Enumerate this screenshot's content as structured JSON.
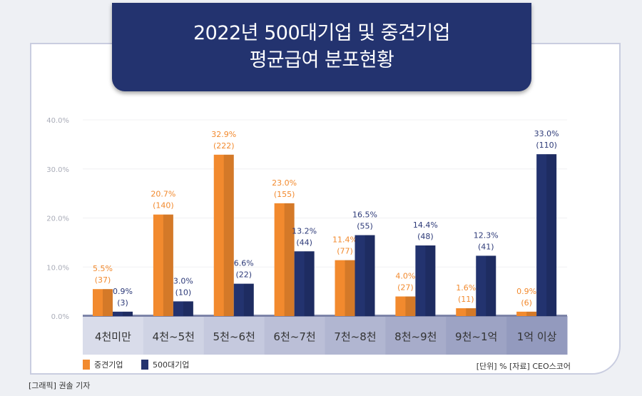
{
  "chart_data": {
    "type": "bar",
    "title": "2022년 500대기업 및 중견기업 평균급여 분포현황",
    "title_lines": [
      "2022년 500대기업 및 중견기업",
      "평균급여 분포현황"
    ],
    "categories": [
      "4천미만",
      "4천~5천",
      "5천~6천",
      "6천~7천",
      "7천~8천",
      "8천~9천",
      "9천~1억",
      "1억 이상"
    ],
    "series": [
      {
        "name": "중견기업",
        "color": "#f28a2e",
        "values": [
          5.5,
          20.7,
          32.9,
          23.0,
          11.4,
          4.0,
          1.6,
          0.9
        ],
        "labels": [
          "5.5%",
          "20.7%",
          "32.9%",
          "23.0%",
          "11.4%",
          "4.0%",
          "1.6%",
          "0.9%"
        ],
        "counts": [
          "(37)",
          "(140)",
          "(222)",
          "(155)",
          "(77)",
          "(27)",
          "(11)",
          "(6)"
        ]
      },
      {
        "name": "500대기업",
        "color": "#23336f",
        "values": [
          0.9,
          3.0,
          6.6,
          13.2,
          16.5,
          14.4,
          12.3,
          33.0
        ],
        "labels": [
          "0.9%",
          "3.0%",
          "6.6%",
          "13.2%",
          "16.5%",
          "14.4%",
          "12.3%",
          "33.0%"
        ],
        "counts": [
          "(3)",
          "(10)",
          "(22)",
          "(44)",
          "(55)",
          "(48)",
          "(41)",
          "(110)"
        ]
      }
    ],
    "yticks": [
      "0.0%",
      "10.0%",
      "20.0%",
      "30.0%",
      "40.0%"
    ],
    "ylim": [
      0,
      40
    ],
    "xlabel": "",
    "ylabel": "",
    "grid": true,
    "legend": "bottom-left"
  },
  "note": "[단위] %  [자료] CEO스코어",
  "credit": "[그래픽] 권솔 기자"
}
